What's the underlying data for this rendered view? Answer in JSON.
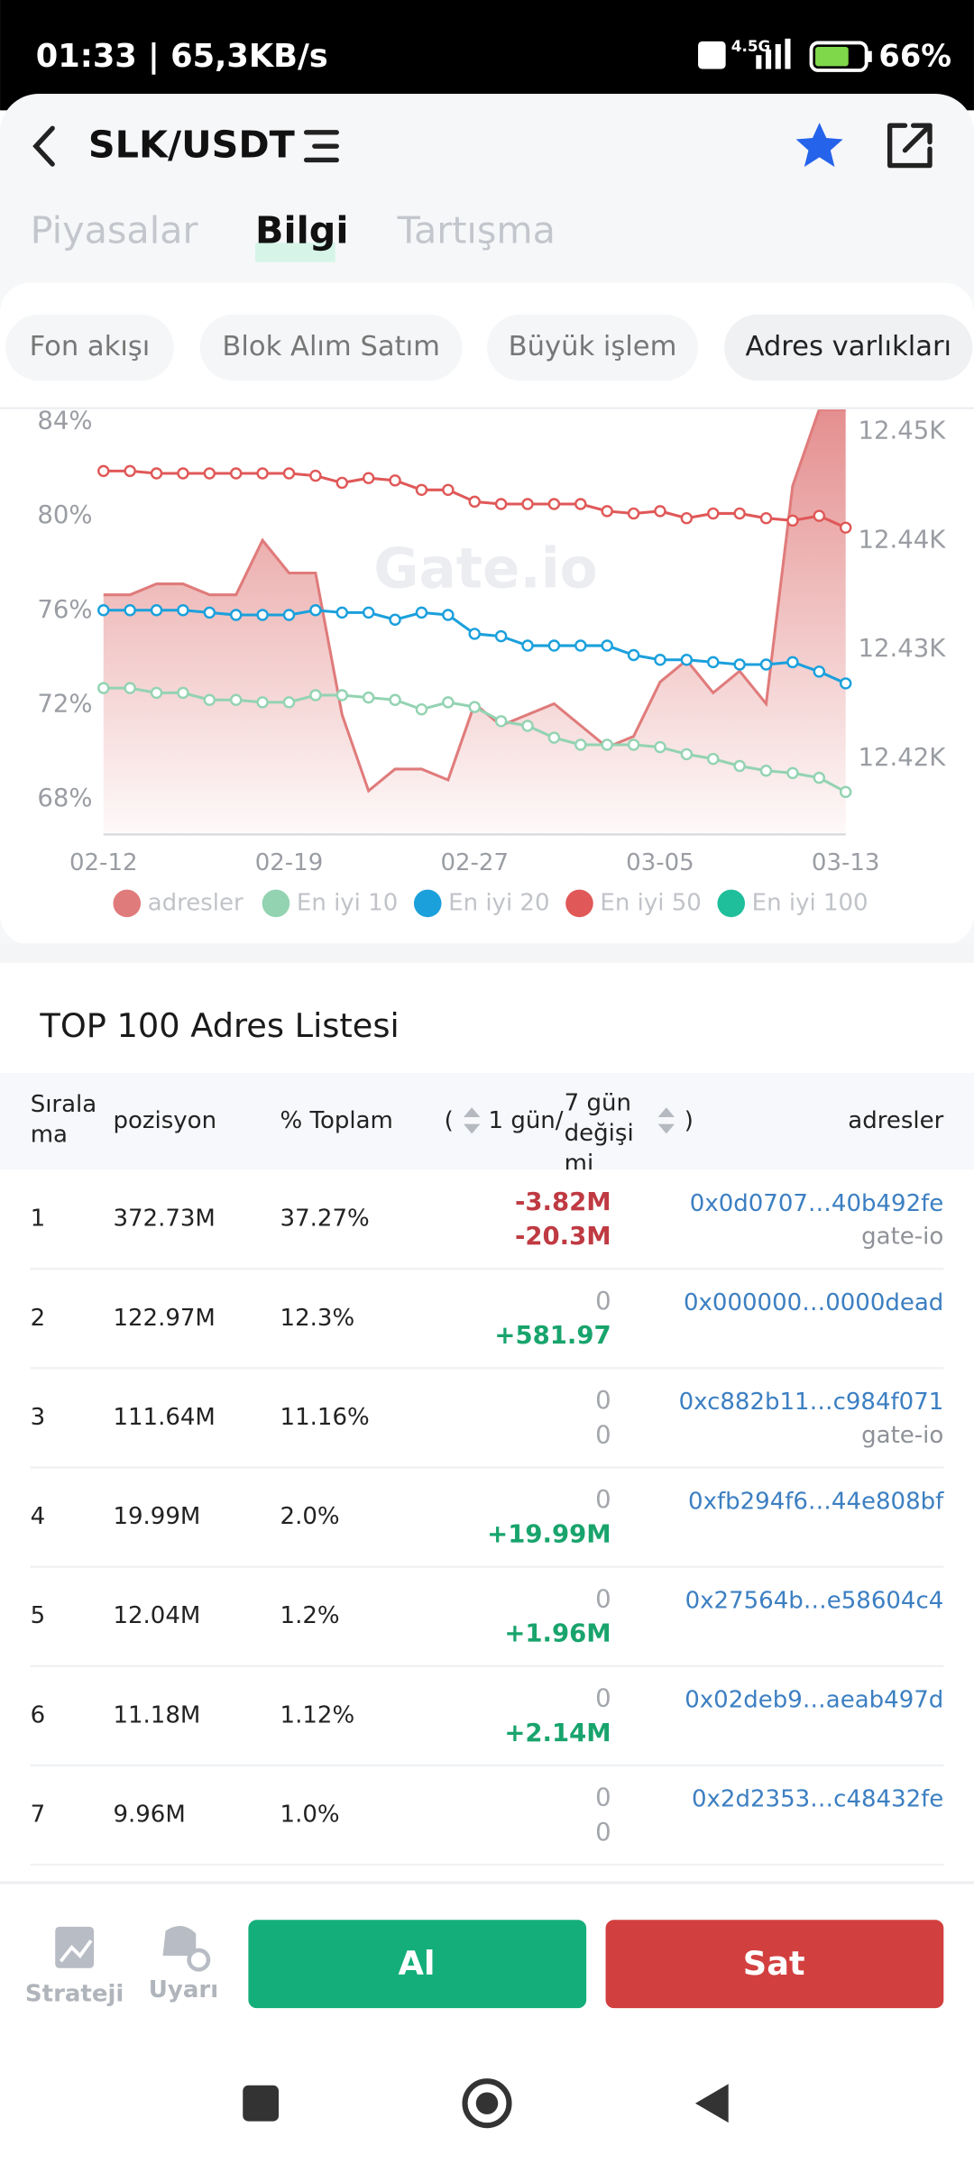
{
  "status_bar": {
    "time_speed": "01:33 | 65,3KB/s",
    "network": "4.5G",
    "battery": "66%"
  },
  "header": {
    "pair": "SLK/USDT"
  },
  "tabs": [
    "Piyasalar",
    "Bilgi",
    "Tartışma"
  ],
  "active_tab": 1,
  "subtabs": [
    "Fon akışı",
    "Blok Alım Satım",
    "Büyük işlem",
    "Adres varlıkları"
  ],
  "active_subtab": 3,
  "watermark": "Gate.io",
  "chart_data": {
    "type": "line",
    "categories": [
      "02-12",
      null,
      null,
      null,
      null,
      null,
      null,
      "02-19",
      null,
      null,
      null,
      null,
      null,
      null,
      "02-27",
      null,
      null,
      null,
      null,
      null,
      null,
      "03-05",
      null,
      null,
      null,
      null,
      null,
      null,
      "03-13"
    ],
    "series": [
      {
        "name": "adresler",
        "color": "#e07b7b",
        "type": "area",
        "axis": "y2",
        "values": [
          12435,
          12435,
          12436,
          12436,
          12435,
          12435,
          12440,
          12437,
          12437,
          12424,
          12417,
          12419,
          12419,
          12418,
          12425,
          12423,
          12424,
          12425,
          12423,
          12421,
          12422,
          12427,
          12429,
          12426,
          12428,
          12425,
          12445,
          12452,
          12452
        ]
      },
      {
        "name": "En iyi 10",
        "color": "#93d3b2",
        "values": [
          72.7,
          72.7,
          72.5,
          72.5,
          72.2,
          72.2,
          72.1,
          72.1,
          72.4,
          72.4,
          72.3,
          72.2,
          71.8,
          72.1,
          71.9,
          71.3,
          71.1,
          70.6,
          70.3,
          70.3,
          70.3,
          70.2,
          69.9,
          69.7,
          69.4,
          69.2,
          69.1,
          68.9,
          68.3
        ]
      },
      {
        "name": "En iyi 20",
        "color": "#1ba0dc",
        "values": [
          76.0,
          76.0,
          76.0,
          76.0,
          75.9,
          75.8,
          75.8,
          75.8,
          76.0,
          75.9,
          75.9,
          75.6,
          75.9,
          75.8,
          75.0,
          74.9,
          74.5,
          74.5,
          74.5,
          74.5,
          74.1,
          73.9,
          73.9,
          73.8,
          73.7,
          73.7,
          73.8,
          73.4,
          72.9
        ]
      },
      {
        "name": "En iyi 50",
        "color": "#e05858",
        "values": [
          81.9,
          81.9,
          81.8,
          81.8,
          81.8,
          81.8,
          81.8,
          81.8,
          81.7,
          81.4,
          81.6,
          81.5,
          81.1,
          81.1,
          80.6,
          80.5,
          80.5,
          80.5,
          80.5,
          80.2,
          80.1,
          80.2,
          79.9,
          80.1,
          80.1,
          79.9,
          79.8,
          80.0,
          79.5
        ]
      },
      {
        "name": "En iyi 100",
        "color": "#1fbf9c",
        "values": [
          null,
          null,
          null,
          null,
          null,
          null,
          null,
          null,
          null,
          null,
          null,
          null,
          null,
          null,
          null,
          null,
          null,
          null,
          null,
          null,
          null,
          null,
          null,
          null,
          null,
          null,
          null,
          null,
          null
        ]
      }
    ],
    "ylim": [
      66.5,
      84.5
    ],
    "yticks": [
      {
        "value": 68,
        "label": "68%"
      },
      {
        "value": 72,
        "label": "72%"
      },
      {
        "value": 76,
        "label": "76%"
      },
      {
        "value": 80,
        "label": "80%"
      },
      {
        "value": 84,
        "label": "84%"
      }
    ],
    "y2lim": [
      12413,
      12452
    ],
    "y2ticks": [
      {
        "value": 12420,
        "label": "12.42K"
      },
      {
        "value": 12430,
        "label": "12.43K"
      },
      {
        "value": 12440,
        "label": "12.44K"
      },
      {
        "value": 12450,
        "label": "12.45K"
      }
    ],
    "grid": false,
    "legend": "bottom"
  },
  "table": {
    "title": "TOP 100 Adres Listesi",
    "columns": {
      "rank": "Sıralama",
      "position": "pozisyon",
      "percent": "% Toplam",
      "open": "(",
      "change_1d": "1 gün/",
      "change_7d": "7 gün değişimi",
      "close": ")",
      "address": "adresler"
    },
    "rows": [
      {
        "rank": "1",
        "position": "372.73M",
        "percent": "37.27%",
        "change_1d": "-3.82M",
        "change_7d": "-20.3M",
        "address": "0x0d0707…40b492fe",
        "tag": "gate-io"
      },
      {
        "rank": "2",
        "position": "122.97M",
        "percent": "12.3%",
        "change_1d": "0",
        "change_7d": "+581.97",
        "address": "0x000000…0000dead"
      },
      {
        "rank": "3",
        "position": "111.64M",
        "percent": "11.16%",
        "change_1d": "0",
        "change_7d": "0",
        "address": "0xc882b11…c984f071",
        "tag": "gate-io"
      },
      {
        "rank": "4",
        "position": "19.99M",
        "percent": "2.0%",
        "change_1d": "0",
        "change_7d": "+19.99M",
        "address": "0xfb294f6…44e808bf"
      },
      {
        "rank": "5",
        "position": "12.04M",
        "percent": "1.2%",
        "change_1d": "0",
        "change_7d": "+1.96M",
        "address": "0x27564b…e58604c4"
      },
      {
        "rank": "6",
        "position": "11.18M",
        "percent": "1.12%",
        "change_1d": "0",
        "change_7d": "+2.14M",
        "address": "0x02deb9…aeab497d"
      },
      {
        "rank": "7",
        "position": "9.96M",
        "percent": "1.0%",
        "change_1d": "0",
        "change_7d": "0",
        "address": "0x2d2353…c48432fe"
      }
    ]
  },
  "bottom_bar": {
    "strategy": "Strateji",
    "alert": "Uyarı",
    "buy": "Al",
    "sell": "Sat"
  }
}
